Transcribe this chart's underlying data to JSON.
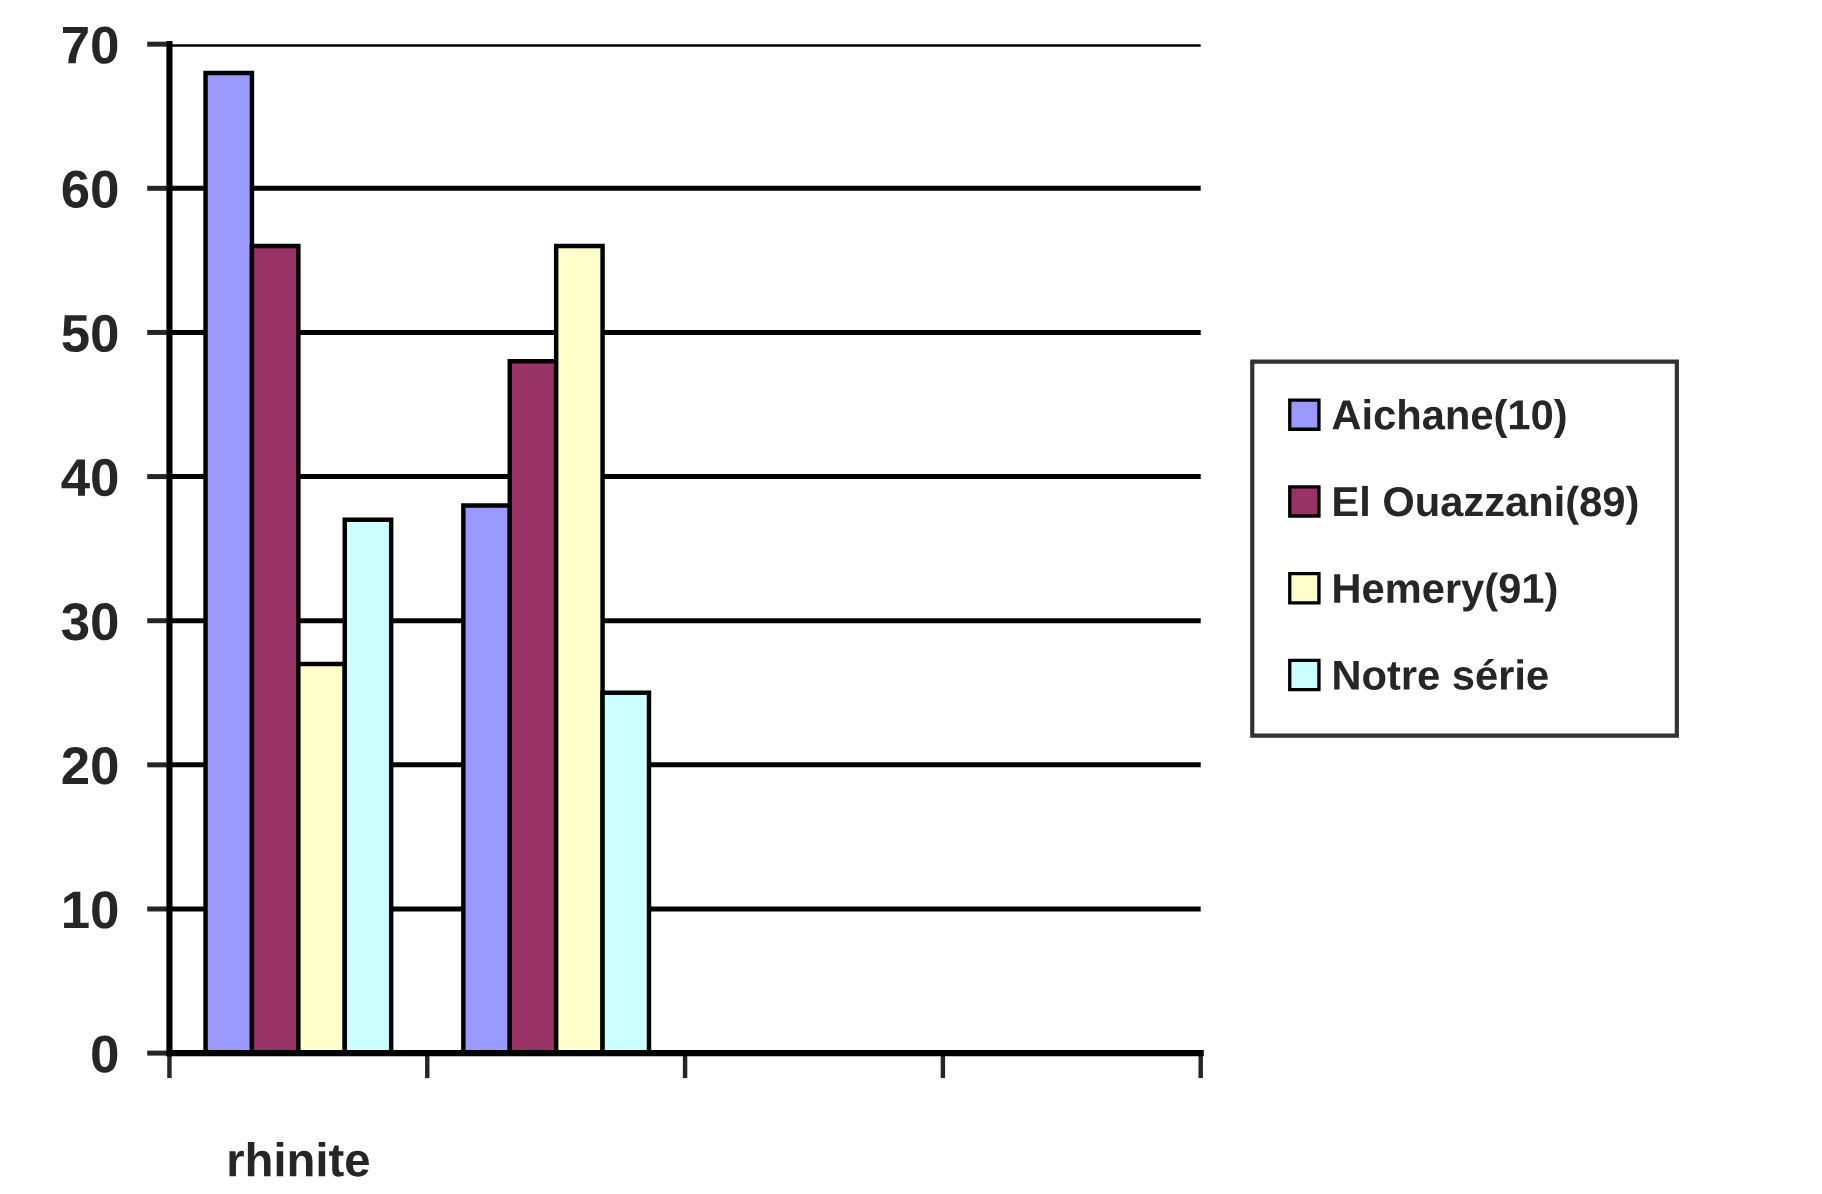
{
  "chart_data": {
    "type": "bar",
    "categories": [
      "rhinite",
      null,
      null,
      null
    ],
    "series": [
      {
        "name": "Aichane(10)",
        "color": "#9999ff",
        "values": [
          68,
          38,
          null,
          null
        ]
      },
      {
        "name": "El Ouazzani(89)",
        "color": "#993366",
        "values": [
          56,
          48,
          null,
          null
        ]
      },
      {
        "name": "Hemery(91)",
        "color": "#ffffcc",
        "values": [
          27,
          56,
          null,
          null
        ]
      },
      {
        "name": "Notre série",
        "color": "#ccffff",
        "values": [
          37,
          25,
          null,
          null
        ]
      }
    ],
    "ylim": [
      0,
      70
    ],
    "yticks": [
      0,
      10,
      20,
      30,
      40,
      50,
      60,
      70
    ],
    "grid": "y",
    "legend": "right"
  }
}
